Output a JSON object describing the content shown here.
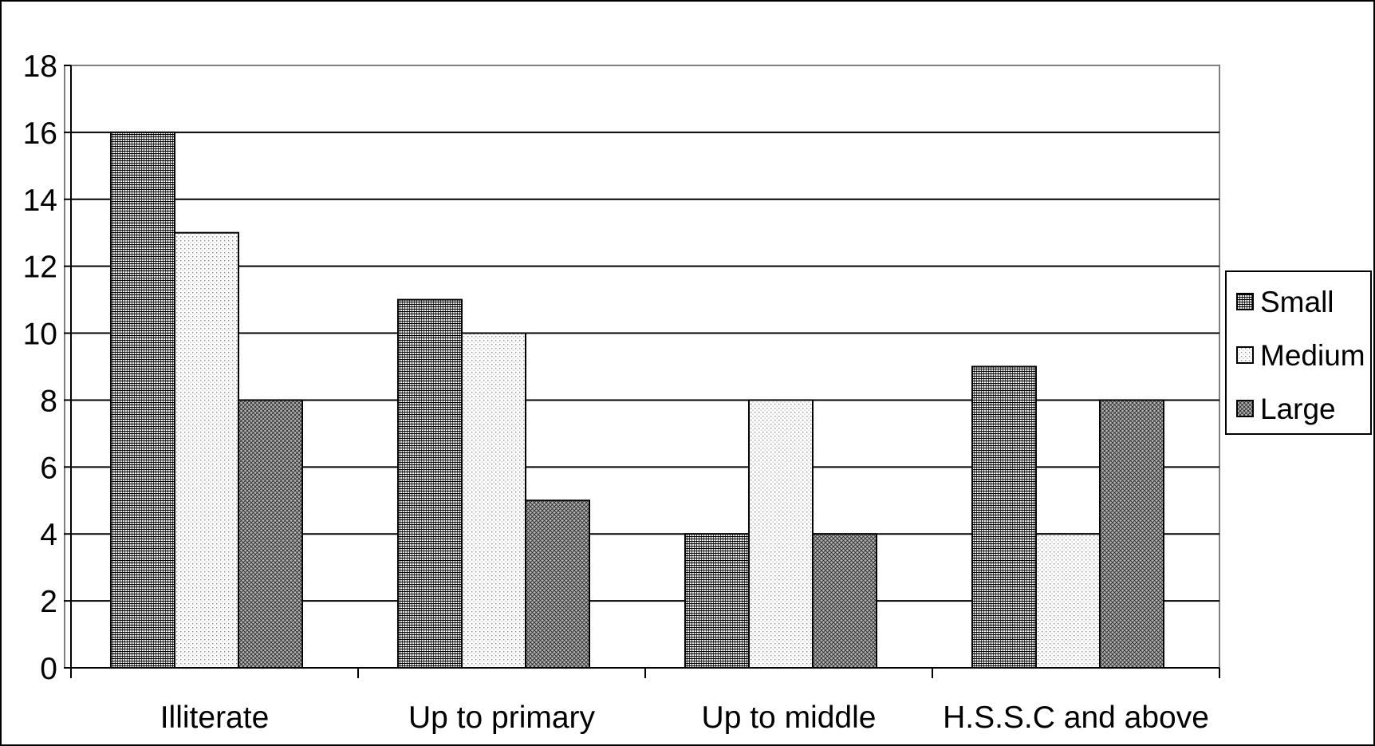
{
  "chart_data": {
    "type": "bar",
    "title": "",
    "xlabel": "",
    "ylabel": "",
    "categories": [
      "Illiterate",
      "Up to primary",
      "Up to middle",
      "H.S.S.C and above"
    ],
    "series": [
      {
        "name": "Small",
        "values": [
          16,
          11,
          4,
          9
        ],
        "pattern": "grid"
      },
      {
        "name": "Medium",
        "values": [
          13,
          10,
          8,
          4
        ],
        "pattern": "dots"
      },
      {
        "name": "Large",
        "values": [
          8,
          5,
          4,
          8
        ],
        "pattern": "crosshatch"
      }
    ],
    "ylim": [
      0,
      18
    ],
    "yticks": [
      0,
      2,
      4,
      6,
      8,
      10,
      12,
      14,
      16,
      18
    ],
    "grid": true,
    "legend_position": "right",
    "colors": {
      "background": "#ffffff",
      "bar_stroke": "#000000",
      "gridline": "#000000"
    }
  }
}
